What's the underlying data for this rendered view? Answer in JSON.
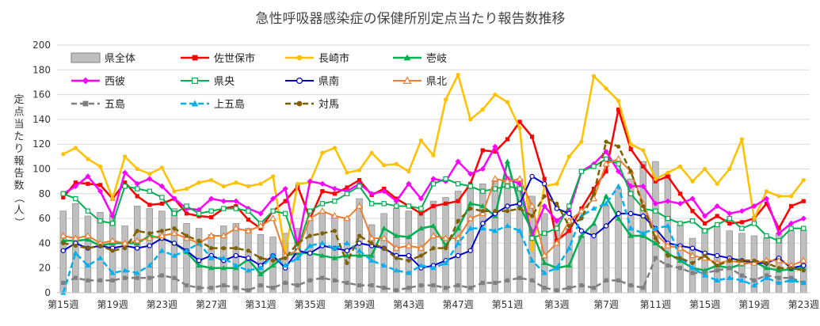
{
  "chart_data": {
    "type": "line",
    "title": "急性呼吸器感染症の保健所別定点当たり報告数推移",
    "ylabel": "定点当たり報告数（人）",
    "xlabel": "",
    "ylim": [
      0,
      200
    ],
    "yticks": [
      0,
      20,
      40,
      60,
      80,
      100,
      120,
      140,
      160,
      180,
      200
    ],
    "grid": "horizontal",
    "legend_position": "top",
    "x_tick_labels": [
      "第15週",
      "第19週",
      "第23週",
      "第27週",
      "第31週",
      "第35週",
      "第39週",
      "第43週",
      "第47週",
      "第51週",
      "第3週",
      "第7週",
      "第11週",
      "第15週",
      "第19週",
      "第23週"
    ],
    "x_tick_positions": [
      0,
      4,
      8,
      12,
      16,
      20,
      24,
      28,
      32,
      36,
      40,
      44,
      48,
      52,
      56,
      60
    ],
    "n_points": 61,
    "bar_series": {
      "name": "県全体",
      "color": "#bfbfbf",
      "stroke": "#7f7f7f",
      "values": [
        66,
        72,
        62,
        65,
        64,
        54,
        70,
        68,
        66,
        68,
        56,
        52,
        47,
        54,
        56,
        52,
        47,
        45,
        48,
        52,
        60,
        64,
        62,
        60,
        76,
        55,
        64,
        68,
        66,
        65,
        74,
        77,
        82,
        84,
        88,
        90,
        94,
        92,
        78,
        64,
        60,
        52,
        46,
        54,
        70,
        84,
        92,
        106,
        106,
        95,
        55,
        44,
        52,
        54,
        50,
        48,
        46,
        44,
        48,
        50,
        51
      ]
    },
    "series": [
      {
        "name": "佐世保市",
        "color": "#ff0000",
        "marker": "square",
        "dash": "solid",
        "width": 2.5,
        "values": [
          77,
          89,
          88,
          87,
          76,
          89,
          78,
          71,
          72,
          76,
          64,
          62,
          61,
          68,
          70,
          59,
          52,
          66,
          74,
          86,
          60,
          82,
          80,
          85,
          91,
          79,
          84,
          76,
          70,
          64,
          70,
          72,
          74,
          88,
          115,
          114,
          124,
          138,
          126,
          92,
          42,
          50,
          68,
          84,
          98,
          148,
          116,
          102,
          90,
          94,
          80,
          66,
          56,
          62,
          56,
          57,
          60,
          72,
          52,
          70,
          74
        ]
      },
      {
        "name": "長崎市",
        "color": "#ffc000",
        "marker": "circle",
        "dash": "solid",
        "width": 2.5,
        "values": [
          112,
          117,
          108,
          102,
          76,
          110,
          100,
          96,
          101,
          82,
          84,
          89,
          91,
          86,
          89,
          86,
          88,
          94,
          32,
          88,
          89,
          113,
          117,
          97,
          99,
          113,
          103,
          104,
          98,
          123,
          111,
          156,
          176,
          140,
          148,
          160,
          154,
          133,
          35,
          86,
          88,
          110,
          122,
          175,
          165,
          155,
          120,
          115,
          92,
          97,
          102,
          90,
          100,
          88,
          100,
          124,
          60,
          82,
          78,
          78,
          91
        ]
      },
      {
        "name": "壱岐",
        "color": "#00b050",
        "marker": "triangle",
        "dash": "solid",
        "width": 2.5,
        "values": [
          42,
          42,
          43,
          38,
          40,
          40,
          40,
          46,
          44,
          40,
          33,
          22,
          20,
          20,
          20,
          27,
          15,
          22,
          30,
          32,
          32,
          30,
          28,
          30,
          30,
          30,
          52,
          46,
          45,
          52,
          54,
          38,
          52,
          72,
          70,
          62,
          106,
          70,
          50,
          24,
          20,
          22,
          46,
          56,
          78,
          60,
          46,
          46,
          40,
          32,
          26,
          20,
          18,
          22,
          20,
          23,
          25,
          20,
          18,
          19,
          20
        ]
      },
      {
        "name": "西彼",
        "color": "#ff00ff",
        "marker": "diamond",
        "dash": "solid",
        "width": 2.5,
        "values": [
          80,
          86,
          94,
          82,
          62,
          97,
          88,
          92,
          86,
          76,
          68,
          67,
          76,
          74,
          74,
          68,
          64,
          76,
          84,
          38,
          90,
          88,
          84,
          82,
          88,
          80,
          82,
          74,
          88,
          76,
          92,
          90,
          106,
          96,
          100,
          118,
          92,
          88,
          46,
          70,
          58,
          66,
          98,
          104,
          114,
          98,
          86,
          86,
          72,
          74,
          72,
          76,
          62,
          70,
          64,
          66,
          70,
          76,
          48,
          56,
          60
        ]
      },
      {
        "name": "県央",
        "color": "#00b050",
        "marker": "square-open",
        "dash": "solid",
        "width": 2,
        "values": [
          80,
          76,
          66,
          58,
          56,
          86,
          84,
          82,
          77,
          64,
          70,
          64,
          66,
          68,
          68,
          66,
          56,
          66,
          64,
          36,
          66,
          72,
          74,
          80,
          86,
          72,
          72,
          70,
          70,
          68,
          88,
          92,
          88,
          86,
          82,
          84,
          86,
          84,
          44,
          48,
          52,
          70,
          98,
          102,
          108,
          104,
          80,
          68,
          66,
          60,
          56,
          58,
          50,
          55,
          60,
          52,
          56,
          46,
          42,
          52,
          52
        ]
      },
      {
        "name": "県南",
        "color": "#0000cc",
        "marker": "circle-open",
        "dash": "solid",
        "width": 2,
        "values": [
          34,
          40,
          36,
          38,
          36,
          38,
          36,
          38,
          44,
          40,
          34,
          26,
          30,
          26,
          30,
          28,
          22,
          30,
          20,
          34,
          32,
          38,
          36,
          34,
          40,
          38,
          36,
          30,
          30,
          20,
          22,
          26,
          30,
          34,
          56,
          64,
          70,
          72,
          94,
          88,
          68,
          64,
          50,
          46,
          54,
          64,
          64,
          62,
          52,
          40,
          38,
          36,
          32,
          30,
          28,
          26,
          24,
          24,
          28,
          20,
          22
        ]
      },
      {
        "name": "県北",
        "color": "#ed7d31",
        "marker": "triangle-open",
        "dash": "solid",
        "width": 2,
        "values": [
          46,
          44,
          46,
          40,
          42,
          40,
          42,
          44,
          46,
          48,
          44,
          40,
          46,
          46,
          52,
          50,
          54,
          60,
          30,
          34,
          60,
          66,
          62,
          60,
          70,
          44,
          44,
          36,
          38,
          36,
          46,
          44,
          44,
          60,
          64,
          92,
          90,
          92,
          70,
          30,
          40,
          58,
          66,
          76,
          104,
          108,
          98,
          72,
          48,
          38,
          36,
          30,
          28,
          24,
          26,
          24,
          24,
          26,
          26,
          22,
          26
        ]
      },
      {
        "name": "五島",
        "color": "#7f7f7f",
        "marker": "square",
        "dash": "dash",
        "width": 2.5,
        "values": [
          8,
          12,
          10,
          10,
          10,
          12,
          12,
          12,
          14,
          12,
          6,
          4,
          4,
          6,
          4,
          2,
          6,
          4,
          8,
          6,
          10,
          12,
          10,
          8,
          6,
          6,
          4,
          2,
          4,
          6,
          6,
          4,
          6,
          4,
          8,
          8,
          10,
          12,
          10,
          4,
          2,
          4,
          6,
          4,
          10,
          10,
          6,
          4,
          28,
          22,
          20,
          16,
          16,
          18,
          20,
          14,
          10,
          14,
          12,
          12,
          8
        ]
      },
      {
        "name": "上五島",
        "color": "#00b0f0",
        "marker": "triangle",
        "dash": "dash",
        "width": 2.5,
        "values": [
          0,
          32,
          22,
          28,
          16,
          18,
          16,
          22,
          34,
          30,
          34,
          40,
          28,
          28,
          22,
          18,
          20,
          30,
          22,
          28,
          38,
          40,
          36,
          40,
          34,
          26,
          22,
          18,
          16,
          22,
          20,
          24,
          40,
          52,
          52,
          50,
          54,
          50,
          26,
          16,
          20,
          36,
          62,
          68,
          72,
          86,
          52,
          48,
          52,
          54,
          28,
          20,
          14,
          10,
          12,
          10,
          6,
          12,
          8,
          10,
          8
        ]
      },
      {
        "name": "対馬",
        "color": "#7f6000",
        "marker": "circle",
        "dash": "dash",
        "width": 2.5,
        "values": [
          40,
          38,
          36,
          38,
          34,
          36,
          50,
          48,
          50,
          52,
          46,
          42,
          36,
          36,
          36,
          34,
          28,
          26,
          28,
          40,
          46,
          48,
          50,
          24,
          46,
          40,
          36,
          28,
          26,
          30,
          36,
          36,
          58,
          68,
          66,
          66,
          66,
          68,
          62,
          78,
          72,
          54,
          60,
          80,
          122,
          118,
          98,
          70,
          44,
          30,
          28,
          24,
          30,
          22,
          26,
          26,
          26,
          24,
          20,
          20,
          18
        ]
      }
    ]
  }
}
